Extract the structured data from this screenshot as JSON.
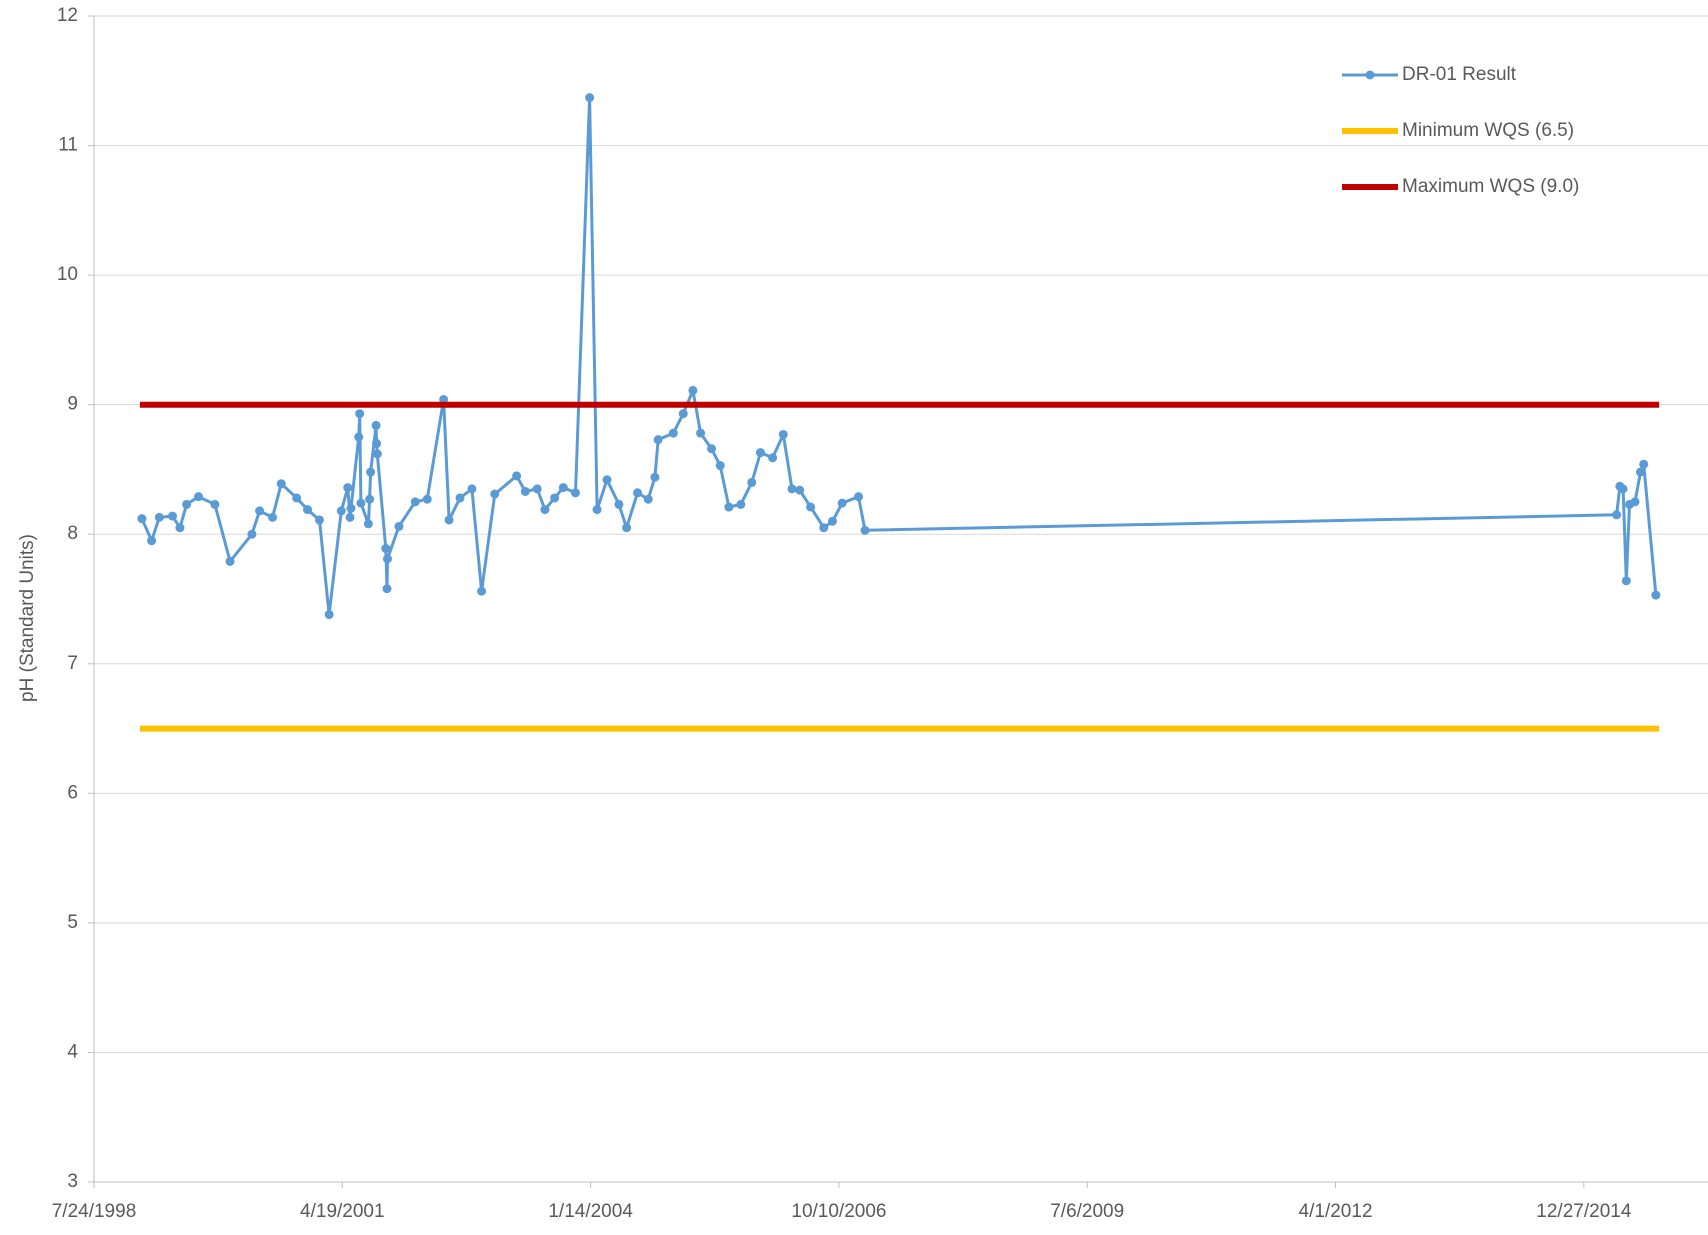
{
  "chart_data": {
    "type": "line",
    "y_label": "pH (Standard Units)",
    "xlim": [
      "7/24/1998",
      "5/10/2016"
    ],
    "xticks": [
      "7/24/1998",
      "4/19/2001",
      "1/14/2004",
      "10/10/2006",
      "7/6/2009",
      "4/1/2012",
      "12/27/2014"
    ],
    "ylim": [
      3,
      12
    ],
    "yticks": [
      3,
      4,
      5,
      6,
      7,
      8,
      9,
      10,
      11,
      12
    ],
    "grid": true,
    "legend": "top-right",
    "series": [
      {
        "name": "DR-01 Result",
        "color": "#5b9bd5",
        "marker": true,
        "x": [
          "2/2/1999",
          "3/13/1999",
          "4/13/1999",
          "6/5/1999",
          "7/5/1999",
          "8/1/1999",
          "9/18/1999",
          "11/23/1999",
          "1/23/2000",
          "4/20/2000",
          "5/21/2000",
          "7/12/2000",
          "8/16/2000",
          "10/17/2000",
          "11/30/2000",
          "1/17/2001",
          "2/25/2001",
          "4/15/2001",
          "5/11/2001",
          "5/20/2001",
          "5/24/2001",
          "6/24/2001",
          "6/28/2001",
          "7/3/2001",
          "8/2/2001",
          "8/7/2001",
          "8/11/2001",
          "9/2/2001",
          "9/4/2001",
          "9/7/2001",
          "10/11/2001",
          "10/16/2001",
          "10/18/2001",
          "12/3/2001",
          "2/7/2002",
          "3/27/2002",
          "6/1/2002",
          "6/23/2002",
          "8/6/2002",
          "9/23/2002",
          "11/1/2002",
          "12/24/2002",
          "3/22/2003",
          "4/26/2003",
          "6/13/2003",
          "7/14/2003",
          "8/22/2003",
          "9/26/2003",
          "11/14/2003",
          "1/10/2004",
          "2/9/2004",
          "3/20/2004",
          "5/7/2004",
          "6/7/2004",
          "7/21/2004",
          "9/2/2004",
          "9/29/2004",
          "10/12/2004",
          "12/12/2004",
          "1/21/2005",
          "3/1/2005",
          "4/1/2005",
          "5/15/2005",
          "6/19/2005",
          "7/24/2005",
          "9/10/2005",
          "10/24/2005",
          "11/28/2005",
          "1/16/2006",
          "2/28/2006",
          "4/4/2006",
          "5/5/2006",
          "6/18/2006",
          "8/10/2006",
          "9/14/2006",
          "10/23/2006",
          "12/28/2006",
          "1/23/2007",
          "5/8/2015",
          "5/21/2015",
          "6/3/2015",
          "6/16/2015",
          "6/29/2015",
          "7/21/2015",
          "8/12/2015",
          "8/25/2015",
          "10/13/2015"
        ],
        "values": [
          8.12,
          7.95,
          8.13,
          8.14,
          8.05,
          8.23,
          8.29,
          8.23,
          7.79,
          8.0,
          8.18,
          8.13,
          8.39,
          8.28,
          8.19,
          8.11,
          7.38,
          8.18,
          8.36,
          8.13,
          8.2,
          8.75,
          8.93,
          8.24,
          8.08,
          8.27,
          8.48,
          8.84,
          8.7,
          8.62,
          7.89,
          7.58,
          7.81,
          8.06,
          8.25,
          8.27,
          9.04,
          8.11,
          8.28,
          8.35,
          7.56,
          8.31,
          8.45,
          8.33,
          8.35,
          8.19,
          8.28,
          8.36,
          8.32,
          11.37,
          8.19,
          8.42,
          8.23,
          8.05,
          8.32,
          8.27,
          8.44,
          8.73,
          8.78,
          8.93,
          9.11,
          8.78,
          8.66,
          8.53,
          8.21,
          8.23,
          8.4,
          8.63,
          8.59,
          8.77,
          8.35,
          8.34,
          8.21,
          8.05,
          8.1,
          8.24,
          8.29,
          8.03,
          8.15,
          8.37,
          8.35,
          7.64,
          8.23,
          8.25,
          8.48,
          8.54,
          7.53
        ]
      },
      {
        "name": "Minimum WQS (6.5)",
        "color": "#ffc000",
        "marker": false,
        "x": [
          "1/25/1999",
          "10/26/2015"
        ],
        "values": [
          6.5,
          6.5
        ]
      },
      {
        "name": "Maximum WQS (9.0)",
        "color": "#c00000",
        "marker": false,
        "x": [
          "1/25/1999",
          "10/26/2015"
        ],
        "values": [
          9.0,
          9.0
        ]
      }
    ]
  }
}
